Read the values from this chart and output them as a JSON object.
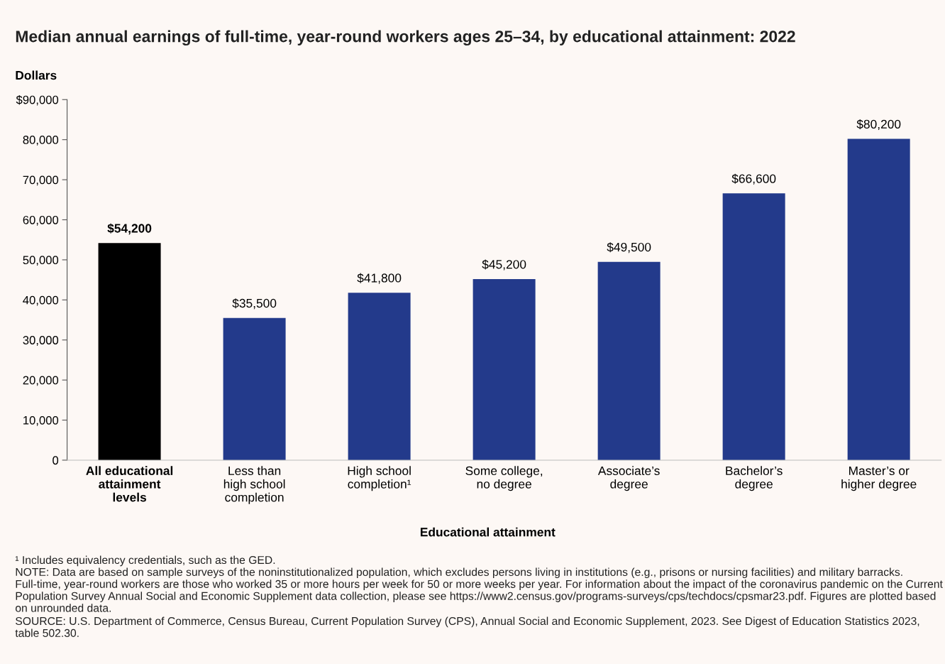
{
  "chart_data": {
    "type": "bar",
    "title": "Median annual earnings of full-time, year-round workers ages 25–34, by educational attainment: 2022",
    "ylabel": "Dollars",
    "xlabel": "Educational attainment",
    "categories": [
      "All educational\nattainment\nlevels",
      "Less than\nhigh school\ncompletion",
      "High school\ncompletion¹",
      "Some college,\nno degree",
      "Associate’s\ndegree",
      "Bachelor’s\ndegree",
      "Master’s or\nhigher degree"
    ],
    "values": [
      54200,
      35500,
      41800,
      45200,
      49500,
      66600,
      80200
    ],
    "colors": [
      "#000000",
      "#233a8b",
      "#233a8b",
      "#233a8b",
      "#233a8b",
      "#233a8b",
      "#233a8b"
    ],
    "value_labels": [
      "$54,200",
      "$35,500",
      "$41,800",
      "$45,200",
      "$49,500",
      "$66,600",
      "$80,200"
    ],
    "ylim": [
      0,
      90000
    ],
    "yticks": [
      0,
      {
        "value": 10000,
        "label": "10,000"
      },
      {
        "value": 20000,
        "label": "20,000"
      },
      {
        "value": 30000,
        "label": "30,000"
      },
      {
        "value": 40000,
        "label": "40,000"
      },
      {
        "value": 50000,
        "label": "50,000"
      },
      {
        "value": 60000,
        "label": "60,000"
      },
      {
        "value": 70000,
        "label": "70,000"
      },
      {
        "value": 80000,
        "label": "80,000"
      },
      {
        "value": 90000,
        "label": "$90,000"
      }
    ],
    "grid": false,
    "legend": false,
    "annotations": [
      "¹ Includes equivalency credentials, such as the GED.",
      "NOTE: Data are based on sample surveys of the noninstitutionalized population, which excludes persons living in institutions (e.g., prisons or nursing facilities) and military barracks. Full-time, year-round workers are those who worked 35 or more hours per week for 50 or more weeks per year. For information about the impact of the coronavirus pandemic on the Current Population Survey Annual Social and Economic Supplement data collection, please see https://www2.census.gov/programs-surveys/cps/techdocs/cpsmar23.pdf. Figures are plotted based on unrounded data.",
      "SOURCE: U.S. Department of Commerce, Census Bureau, Current Population Survey (CPS), Annual Social and Economic Supplement, 2023. See Digest of Education Statistics 2023, table 502.30."
    ]
  }
}
